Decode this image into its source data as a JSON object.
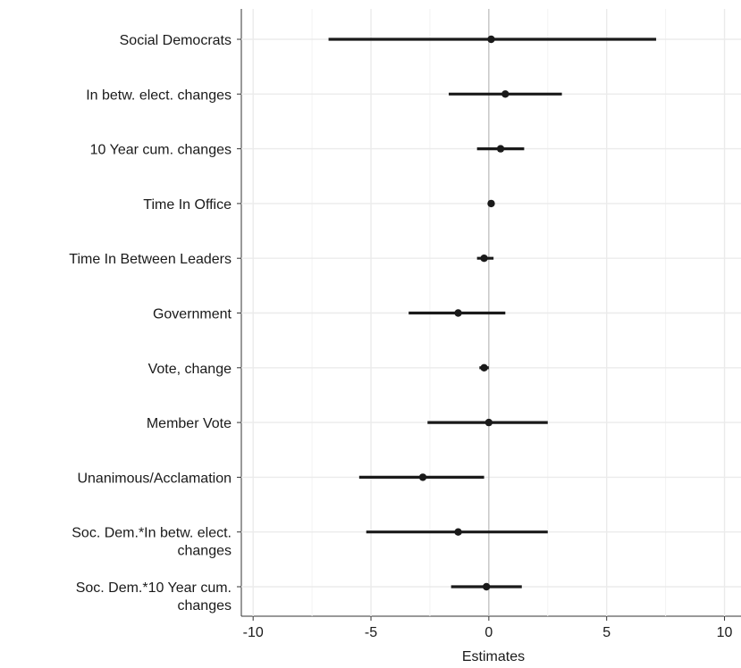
{
  "chart_data": {
    "type": "scatter",
    "subtype": "coefficient-plot",
    "title": "",
    "xlabel": "Estimates",
    "ylabel": "",
    "xlim": [
      -10.5,
      10.7
    ],
    "xticks": [
      -10,
      -5,
      0,
      5,
      10
    ],
    "xtick_labels": [
      "-10",
      "-5",
      "0",
      "5",
      "10"
    ],
    "reference_line": 0,
    "grid": true,
    "legend": "none",
    "colors": {
      "point": "#1a1a1a",
      "interval": "#1a1a1a",
      "grid": "#ebebeb",
      "reference": "#bdbdbd",
      "panel_border": "#333333"
    },
    "terms": [
      {
        "label": [
          "Social Democrats"
        ],
        "estimate": 0.1,
        "low": -6.8,
        "high": 7.1
      },
      {
        "label": [
          "In betw. elect. changes"
        ],
        "estimate": 0.7,
        "low": -1.7,
        "high": 3.1
      },
      {
        "label": [
          "10 Year cum. changes"
        ],
        "estimate": 0.5,
        "low": -0.5,
        "high": 1.5
      },
      {
        "label": [
          "Time In Office"
        ],
        "estimate": 0.1,
        "low": 0.0,
        "high": 0.2
      },
      {
        "label": [
          "Time In Between Leaders"
        ],
        "estimate": -0.2,
        "low": -0.5,
        "high": 0.2
      },
      {
        "label": [
          "Government"
        ],
        "estimate": -1.3,
        "low": -3.4,
        "high": 0.7
      },
      {
        "label": [
          "Vote, change"
        ],
        "estimate": -0.2,
        "low": -0.4,
        "high": 0.0
      },
      {
        "label": [
          "Member Vote"
        ],
        "estimate": 0.0,
        "low": -2.6,
        "high": 2.5
      },
      {
        "label": [
          "Unanimous/Acclamation"
        ],
        "estimate": -2.8,
        "low": -5.5,
        "high": -0.2
      },
      {
        "label": [
          "Soc. Dem.*In betw. elect.",
          "changes"
        ],
        "estimate": -1.3,
        "low": -5.2,
        "high": 2.5
      },
      {
        "label": [
          "Soc. Dem.*10 Year cum.",
          "changes"
        ],
        "estimate": -0.1,
        "low": -1.6,
        "high": 1.4
      }
    ]
  }
}
